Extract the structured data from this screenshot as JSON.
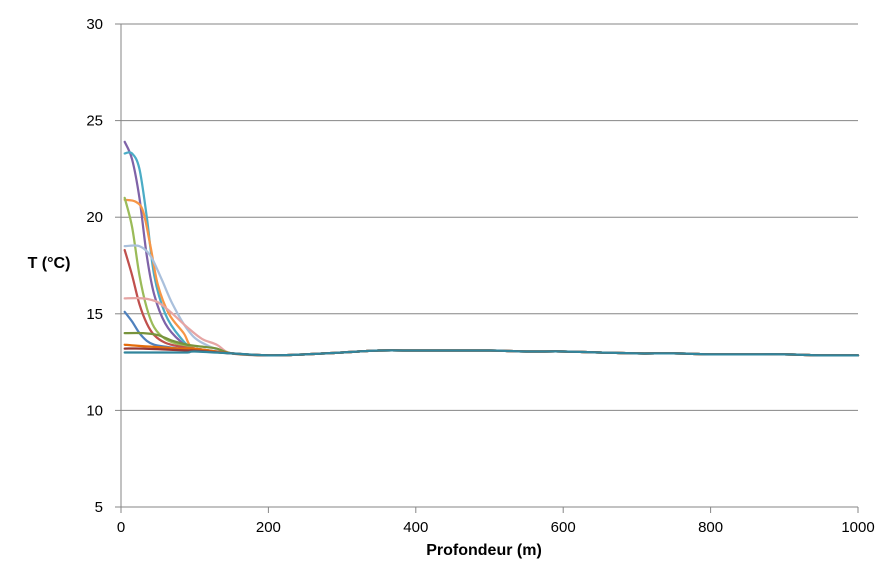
{
  "chart_data": {
    "type": "line",
    "title": "",
    "xlabel": "Profondeur (m)",
    "ylabel": "T (°C)",
    "xlim": [
      0,
      1000
    ],
    "ylim": [
      5,
      30
    ],
    "x_ticks": [
      "0",
      "200",
      "400",
      "600",
      "800",
      "1000"
    ],
    "y_ticks": [
      "5",
      "10",
      "15",
      "20",
      "25",
      "30"
    ],
    "grid": "horizontal",
    "legend": "none",
    "tail": [
      [
        100,
        13.2
      ],
      [
        150,
        12.95
      ],
      [
        200,
        12.85
      ],
      [
        250,
        12.9
      ],
      [
        300,
        13.0
      ],
      [
        350,
        13.1
      ],
      [
        400,
        13.1
      ],
      [
        450,
        13.1
      ],
      [
        500,
        13.1
      ],
      [
        550,
        13.05
      ],
      [
        600,
        13.05
      ],
      [
        650,
        13.0
      ],
      [
        700,
        12.95
      ],
      [
        750,
        12.95
      ],
      [
        800,
        12.9
      ],
      [
        850,
        12.9
      ],
      [
        900,
        12.9
      ],
      [
        950,
        12.85
      ],
      [
        1000,
        12.85
      ]
    ],
    "series": [
      {
        "color": "#7F63A8",
        "values": [
          [
            5,
            23.9
          ],
          [
            15,
            23.0
          ],
          [
            25,
            21.0
          ],
          [
            35,
            18.0
          ],
          [
            45,
            16.0
          ],
          [
            60,
            14.5
          ],
          [
            80,
            13.6
          ]
        ]
      },
      {
        "color": "#4BACC6",
        "values": [
          [
            5,
            23.3
          ],
          [
            15,
            23.3
          ],
          [
            25,
            22.5
          ],
          [
            35,
            20.0
          ],
          [
            45,
            17.0
          ],
          [
            60,
            15.0
          ],
          [
            80,
            13.8
          ]
        ]
      },
      {
        "color": "#F79646",
        "values": [
          [
            5,
            20.9
          ],
          [
            20,
            20.8
          ],
          [
            30,
            20.3
          ],
          [
            40,
            18.5
          ],
          [
            50,
            16.5
          ],
          [
            65,
            15.0
          ],
          [
            85,
            14.0
          ]
        ]
      },
      {
        "color": "#9BBB59",
        "values": [
          [
            5,
            21.0
          ],
          [
            15,
            19.5
          ],
          [
            25,
            17.0
          ],
          [
            35,
            15.3
          ],
          [
            45,
            14.3
          ],
          [
            60,
            13.7
          ],
          [
            80,
            13.4
          ]
        ]
      },
      {
        "color": "#AAC0DC",
        "values": [
          [
            5,
            18.5
          ],
          [
            25,
            18.5
          ],
          [
            40,
            18.0
          ],
          [
            55,
            16.8
          ],
          [
            70,
            15.5
          ],
          [
            90,
            14.2
          ],
          [
            110,
            13.5
          ]
        ]
      },
      {
        "color": "#C0504D",
        "values": [
          [
            5,
            18.3
          ],
          [
            15,
            17.0
          ],
          [
            25,
            15.5
          ],
          [
            35,
            14.5
          ],
          [
            45,
            13.9
          ],
          [
            60,
            13.5
          ],
          [
            80,
            13.3
          ]
        ]
      },
      {
        "color": "#E6A5A4",
        "values": [
          [
            5,
            15.8
          ],
          [
            30,
            15.8
          ],
          [
            50,
            15.6
          ],
          [
            70,
            15.0
          ],
          [
            90,
            14.3
          ],
          [
            110,
            13.7
          ],
          [
            130,
            13.4
          ]
        ]
      },
      {
        "color": "#4F81BD",
        "values": [
          [
            5,
            15.1
          ],
          [
            15,
            14.6
          ],
          [
            25,
            14.0
          ],
          [
            35,
            13.6
          ],
          [
            45,
            13.4
          ],
          [
            60,
            13.3
          ],
          [
            80,
            13.2
          ]
        ]
      },
      {
        "color": "#77933C",
        "values": [
          [
            5,
            14.0
          ],
          [
            30,
            14.0
          ],
          [
            50,
            13.9
          ],
          [
            70,
            13.6
          ],
          [
            90,
            13.4
          ],
          [
            110,
            13.3
          ],
          [
            130,
            13.2
          ]
        ]
      },
      {
        "color": "#E46C0A",
        "values": [
          [
            5,
            13.4
          ],
          [
            20,
            13.35
          ],
          [
            40,
            13.3
          ],
          [
            60,
            13.25
          ],
          [
            80,
            13.2
          ],
          [
            100,
            13.2
          ]
        ]
      },
      {
        "color": "#953735",
        "values": [
          [
            5,
            13.2
          ],
          [
            30,
            13.2
          ],
          [
            60,
            13.15
          ],
          [
            90,
            13.1
          ],
          [
            100,
            13.1
          ]
        ]
      },
      {
        "color": "#31859C",
        "values": [
          [
            5,
            13.0
          ],
          [
            30,
            13.0
          ],
          [
            60,
            13.0
          ],
          [
            90,
            13.0
          ],
          [
            100,
            13.05
          ]
        ]
      }
    ]
  }
}
